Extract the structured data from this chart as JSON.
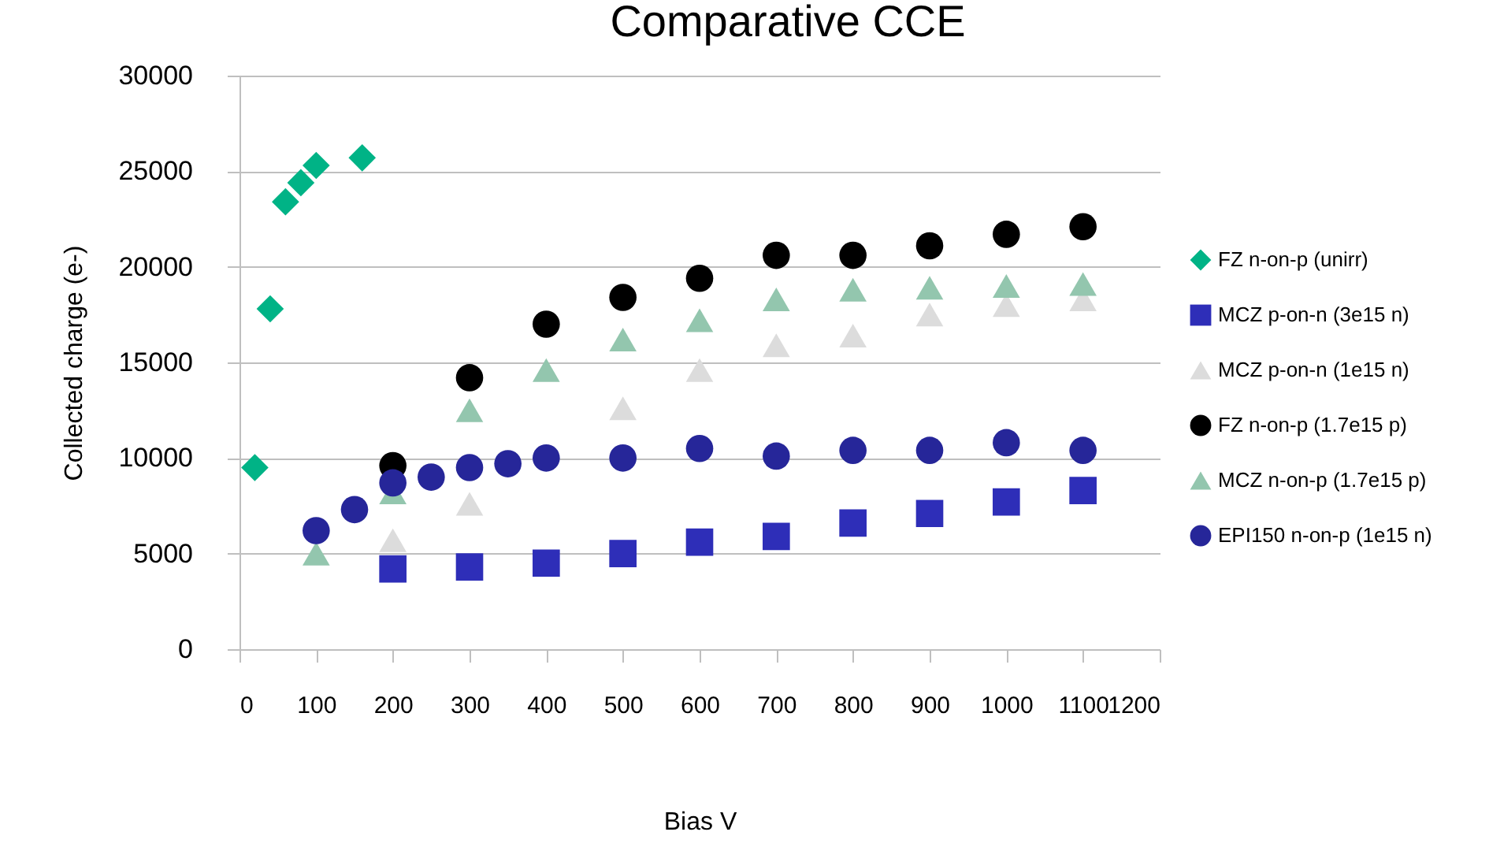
{
  "chart_data": {
    "type": "scatter",
    "title": "Comparative CCE",
    "xlabel": "Bias V",
    "ylabel": "Collected charge (e-)",
    "xlim": [
      0,
      1200
    ],
    "xticks": [
      0,
      100,
      200,
      300,
      400,
      500,
      600,
      700,
      800,
      900,
      1000,
      1100,
      1200
    ],
    "ylim": [
      0,
      30000
    ],
    "yticks": [
      0,
      5000,
      10000,
      15000,
      20000,
      25000,
      30000
    ],
    "grid": "y",
    "legend": "right",
    "series": [
      {
        "name": "FZ n-on-p (unirr)",
        "color": "#00b386",
        "marker": "diamond",
        "x": [
          20,
          40,
          60,
          80,
          100,
          160
        ],
        "values": [
          9500,
          17800,
          23400,
          24400,
          25300,
          25700
        ]
      },
      {
        "name": "MCZ p-on-n (3e15 n)",
        "color": "#2e2eb8",
        "marker": "square",
        "x": [
          200,
          300,
          400,
          500,
          600,
          700,
          800,
          900,
          1000,
          1100
        ],
        "values": [
          4200,
          4300,
          4500,
          5000,
          5600,
          5900,
          6600,
          7100,
          7700,
          8300
        ]
      },
      {
        "name": "MCZ p-on-n (1e15 n)",
        "color": "#dcdcdc",
        "marker": "triangle",
        "x": [
          200,
          300,
          500,
          600,
          700,
          800,
          900,
          1000,
          1100
        ],
        "values": [
          5700,
          7600,
          12600,
          14600,
          15900,
          16400,
          17500,
          18000,
          18300
        ]
      },
      {
        "name": "FZ n-on-p (1.7e15 p)",
        "color": "#000000",
        "marker": "circle",
        "x": [
          200,
          300,
          400,
          500,
          600,
          700,
          800,
          900,
          1000,
          1100
        ],
        "values": [
          9600,
          14200,
          17000,
          18400,
          19400,
          20600,
          20600,
          21100,
          21700,
          22100
        ]
      },
      {
        "name": "MCZ n-on-p (1.7e15 p)",
        "color": "#93c6ae",
        "marker": "triangle",
        "x": [
          100,
          200,
          300,
          400,
          500,
          600,
          700,
          800,
          900,
          1000,
          1100
        ],
        "values": [
          5000,
          8200,
          12500,
          14600,
          16200,
          17200,
          18300,
          18800,
          18900,
          19000,
          19100
        ]
      },
      {
        "name": "EPI150 n-on-p (1e15 n)",
        "color": "#262699",
        "marker": "circle",
        "x": [
          100,
          150,
          200,
          250,
          300,
          350,
          400,
          500,
          600,
          700,
          800,
          900,
          1000,
          1100
        ],
        "values": [
          6200,
          7300,
          8700,
          9000,
          9500,
          9700,
          10000,
          10000,
          10500,
          10100,
          10400,
          10400,
          10800,
          10400
        ]
      }
    ]
  }
}
